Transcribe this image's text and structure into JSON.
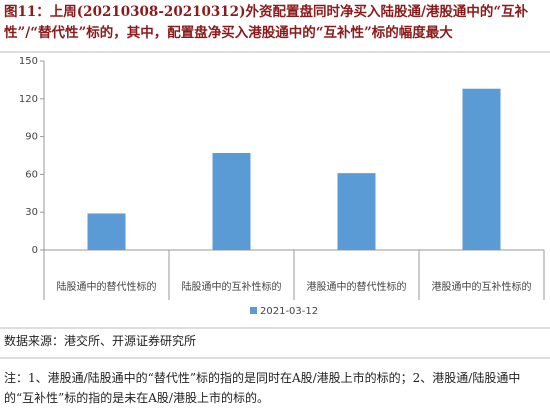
{
  "chart_data": {
    "type": "bar",
    "title": "图11：上周(20210308-20210312)外资配置盘同时净买入陆股通/港股通中的“互补性”/“替代性”标的，其中，配置盘净买入港股通中的“互补性”标的幅度最大",
    "categories": [
      "陆股通中的替代性标的",
      "陆股通中的互补性标的",
      "港股通中的替代性标的",
      "港股通中的互补性标的"
    ],
    "series": [
      {
        "name": "2021-03-12",
        "color": "#5b9bd5",
        "values": [
          29,
          77,
          61,
          128
        ]
      }
    ],
    "ylim": [
      0,
      150
    ],
    "yticks": [
      0,
      30,
      60,
      90,
      120,
      150
    ],
    "grid": false,
    "source": "数据来源：港交所、开源证券研究所",
    "note": "注：1、港股通/陆股通中的“替代性”标的指的是同时在A股/港股上市的标的；2、港股通/陆股通中的“互补性”标的指的是未在A股/港股上市的标的。"
  }
}
